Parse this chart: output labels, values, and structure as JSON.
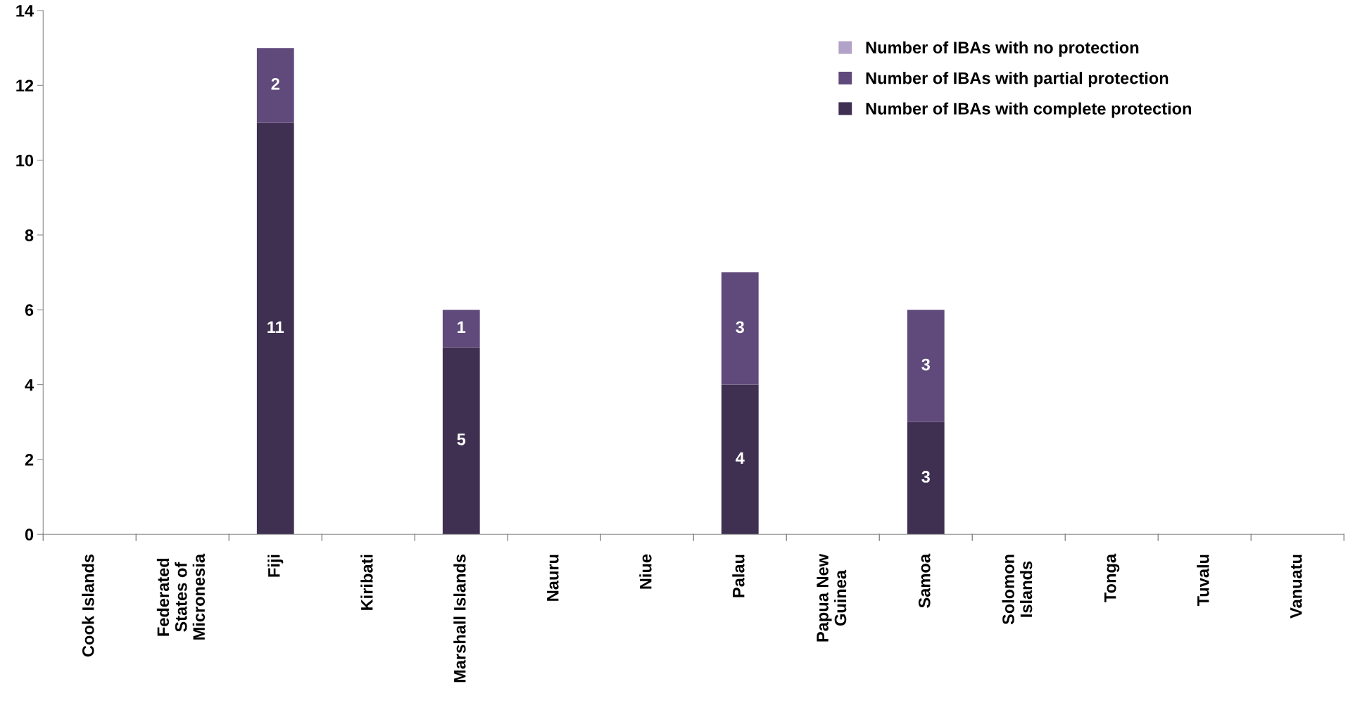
{
  "chart_data": {
    "type": "bar",
    "stacked": true,
    "categories": [
      "Cook Islands",
      "Federated\nStates of\nMicronesia",
      "Fiji",
      "Kiribati",
      "Marshall Islands",
      "Nauru",
      "Niue",
      "Palau",
      "Papua New\nGuinea",
      "Samoa",
      "Solomon\nIslands",
      "Tonga",
      "Tuvalu",
      "Vanuatu"
    ],
    "series": [
      {
        "name": "Number of IBAs with complete protection",
        "color": "#3f3052",
        "values": [
          0,
          0,
          11,
          0,
          5,
          0,
          0,
          4,
          0,
          3,
          0,
          0,
          0,
          0
        ],
        "value_labels": [
          null,
          null,
          "11",
          null,
          "5",
          null,
          null,
          "4",
          null,
          "3",
          null,
          null,
          null,
          null
        ]
      },
      {
        "name": "Number of IBAs with partial protection",
        "color": "#604a7b",
        "values": [
          0,
          0,
          2,
          0,
          1,
          0,
          0,
          3,
          0,
          3,
          0,
          0,
          0,
          0
        ],
        "value_labels": [
          null,
          null,
          "2",
          null,
          "1",
          null,
          null,
          "3",
          null,
          "3",
          null,
          null,
          null,
          null
        ]
      },
      {
        "name": "Number of IBAs with no protection",
        "color": "#b3a2c7",
        "values": [
          0,
          0,
          0,
          0,
          0,
          0,
          0,
          0,
          0,
          0,
          0,
          0,
          0,
          0
        ],
        "value_labels": [
          null,
          null,
          null,
          null,
          null,
          null,
          null,
          null,
          null,
          null,
          null,
          null,
          null,
          null
        ]
      }
    ],
    "ylim": [
      0,
      14
    ],
    "yticks": [
      0,
      2,
      4,
      6,
      8,
      10,
      12,
      14
    ],
    "grid": false,
    "legend": "top right"
  }
}
